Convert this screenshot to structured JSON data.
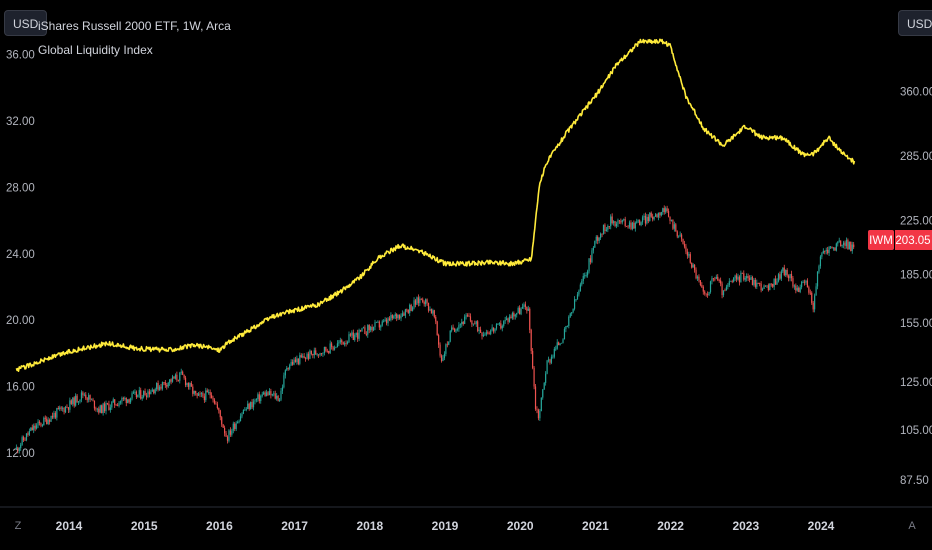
{
  "header": {
    "currency_left": "USD",
    "currency_right": "USD",
    "title": "iShares Russell 2000 ETF, 1W, Arca",
    "indicator": "Global Liquidity Index"
  },
  "corner": {
    "left_label": "Z",
    "right_label": "A"
  },
  "last_price": {
    "symbol": "IWM",
    "value": "203.05",
    "color": "#f23645"
  },
  "colors": {
    "up": "#26a69a",
    "down": "#ef5350",
    "liquidity_line": "#ffeb3b",
    "background": "#000000"
  },
  "chart_data": {
    "type": "line",
    "title": "iShares Russell 2000 ETF, 1W, Arca",
    "x_ticks": [
      "2014",
      "2015",
      "2016",
      "2017",
      "2018",
      "2019",
      "2020",
      "2021",
      "2022",
      "2023",
      "2024"
    ],
    "left_axis": {
      "ticks": [
        "12.00",
        "16.00",
        "20.00",
        "24.00",
        "28.00",
        "32.00",
        "36.00"
      ],
      "range": [
        12,
        36
      ]
    },
    "right_axis": {
      "ticks": [
        "87.50",
        "105.00",
        "125.00",
        "155.00",
        "185.00",
        "225.00",
        "285.00",
        "360.00"
      ],
      "scale": "log",
      "range": [
        87.5,
        360
      ]
    },
    "series": [
      {
        "name": "Global Liquidity Index",
        "axis": "left",
        "color": "#ffeb3b",
        "x": [
          2013.3,
          2013.6,
          2014.0,
          2014.5,
          2014.9,
          2015.3,
          2015.7,
          2016.0,
          2016.1,
          2016.4,
          2016.7,
          2017.0,
          2017.3,
          2017.6,
          2017.9,
          2018.1,
          2018.4,
          2018.7,
          2019.0,
          2019.3,
          2019.6,
          2019.9,
          2020.15,
          2020.25,
          2020.35,
          2020.6,
          2021.0,
          2021.3,
          2021.6,
          2021.9,
          2022.0,
          2022.2,
          2022.45,
          2022.7,
          2023.0,
          2023.2,
          2023.5,
          2023.75,
          2023.9,
          2024.1,
          2024.3,
          2024.45
        ],
        "values": [
          17.0,
          17.5,
          18.1,
          18.6,
          18.3,
          18.2,
          18.5,
          18.2,
          18.6,
          19.4,
          20.2,
          20.6,
          20.9,
          21.7,
          22.7,
          23.7,
          24.5,
          24.1,
          23.4,
          23.4,
          23.5,
          23.4,
          23.7,
          28.0,
          29.5,
          31.2,
          33.5,
          35.5,
          36.8,
          36.8,
          36.5,
          33.5,
          31.5,
          30.5,
          31.7,
          31.0,
          31.0,
          30.0,
          30.0,
          31.0,
          30.0,
          29.5
        ]
      },
      {
        "name": "IWM",
        "axis": "right",
        "color": "#26a69a",
        "x": [
          2013.3,
          2013.5,
          2014.0,
          2014.2,
          2014.4,
          2014.7,
          2015.0,
          2015.3,
          2015.5,
          2015.7,
          2015.9,
          2016.1,
          2016.3,
          2016.6,
          2016.8,
          2016.9,
          2017.2,
          2017.5,
          2017.8,
          2018.0,
          2018.2,
          2018.5,
          2018.7,
          2018.85,
          2018.95,
          2019.1,
          2019.3,
          2019.5,
          2019.7,
          2019.9,
          2020.1,
          2020.2,
          2020.25,
          2020.35,
          2020.6,
          2020.9,
          2021.0,
          2021.2,
          2021.5,
          2021.8,
          2021.9,
          2022.1,
          2022.3,
          2022.45,
          2022.6,
          2022.7,
          2022.8,
          2023.0,
          2023.1,
          2023.3,
          2023.5,
          2023.7,
          2023.8,
          2023.9,
          2024.0,
          2024.3,
          2024.45
        ],
        "values": [
          98,
          105,
          115,
          120,
          113,
          117,
          120,
          125,
          128,
          118,
          120,
          102,
          112,
          120,
          118,
          133,
          138,
          142,
          148,
          152,
          155,
          163,
          170,
          160,
          135,
          152,
          158,
          150,
          152,
          160,
          165,
          115,
          110,
          133,
          150,
          190,
          210,
          225,
          222,
          230,
          235,
          215,
          190,
          170,
          185,
          172,
          180,
          185,
          180,
          175,
          188,
          175,
          180,
          165,
          200,
          208,
          203
        ]
      }
    ]
  }
}
